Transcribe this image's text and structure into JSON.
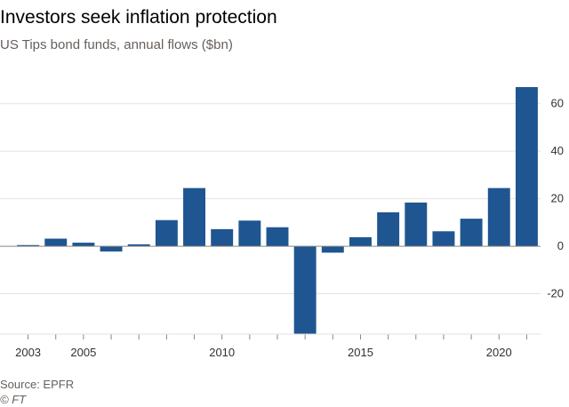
{
  "header": {
    "title": "Investors seek inflation protection",
    "subtitle": "US Tips bond funds, annual flows ($bn)"
  },
  "footer": {
    "source": "Source: EPFR",
    "credit": "© FT"
  },
  "colors": {
    "bar": "#1f5591",
    "grid": "#e6e1dc",
    "axis": "#8a8682"
  },
  "chart_data": {
    "type": "bar",
    "title": "Investors seek inflation protection",
    "subtitle": "US Tips bond funds, annual flows ($bn)",
    "xlabel": "",
    "ylabel": "",
    "categories": [
      2003,
      2004,
      2005,
      2006,
      2007,
      2008,
      2009,
      2010,
      2011,
      2012,
      2013,
      2014,
      2015,
      2016,
      2017,
      2018,
      2019,
      2020,
      2021
    ],
    "values": [
      0.5,
      3.2,
      1.5,
      -2.2,
      0.8,
      11,
      24.5,
      7.2,
      10.8,
      8,
      -37,
      -2.7,
      3.8,
      14.3,
      18.4,
      6.3,
      11.6,
      24.5,
      67
    ],
    "ylim": [
      -37,
      70
    ],
    "yticks": [
      -20,
      0,
      20,
      40,
      60
    ],
    "xtick_labels": [
      "2003",
      "2005",
      "2010",
      "2015",
      "2020"
    ],
    "grid": true,
    "y_axis_position": "right"
  }
}
